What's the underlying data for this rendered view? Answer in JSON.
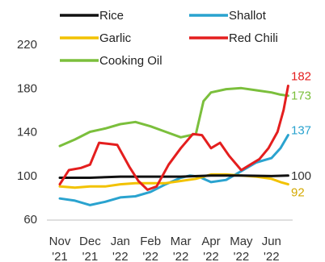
{
  "chart_data": {
    "type": "line",
    "title": "",
    "xlabel": "",
    "ylabel": "",
    "ylim": [
      60,
      220
    ],
    "yticks": [
      60,
      100,
      140,
      180,
      220
    ],
    "xlim": [
      0,
      7.6
    ],
    "xticks": [
      {
        "x": 0,
        "line1": "Nov",
        "line2": "'21"
      },
      {
        "x": 1,
        "line1": "Dec",
        "line2": "'21"
      },
      {
        "x": 2,
        "line1": "Jan",
        "line2": "'22"
      },
      {
        "x": 3,
        "line1": "Feb",
        "line2": "'22"
      },
      {
        "x": 4,
        "line1": "Mar",
        "line2": "'22"
      },
      {
        "x": 5,
        "line1": "Apr",
        "line2": "'22"
      },
      {
        "x": 6,
        "line1": "May",
        "line2": "'22"
      },
      {
        "x": 7,
        "line1": "Jun",
        "line2": "'22"
      }
    ],
    "grid": false,
    "legend_position": "top",
    "legend_order": [
      "Rice",
      "Shallot",
      "Garlic",
      "Red Chili",
      "Cooking Oil"
    ],
    "series": [
      {
        "name": "Rice",
        "color": "#111111",
        "end_label": "100",
        "end_label_color": "#333333",
        "x": [
          0,
          1,
          2,
          3,
          4,
          5,
          6,
          7,
          7.55
        ],
        "y": [
          98,
          98,
          99,
          99,
          99,
          100,
          100,
          99.5,
          100
        ]
      },
      {
        "name": "Shallot",
        "color": "#2aa3cf",
        "end_label": "137",
        "end_label_color": "#2aa3cf",
        "x": [
          0,
          0.5,
          1,
          1.5,
          2,
          2.5,
          3,
          3.5,
          4,
          4.3,
          4.6,
          5,
          5.5,
          6,
          6.5,
          7,
          7.3,
          7.55
        ],
        "y": [
          79,
          77,
          73,
          76,
          80,
          81,
          85,
          92,
          98,
          100,
          99,
          94,
          96,
          104,
          112,
          116,
          125,
          137
        ]
      },
      {
        "name": "Garlic",
        "color": "#f2c200",
        "end_label": "92",
        "end_label_color": "#d4a900",
        "x": [
          0,
          0.5,
          1,
          1.5,
          2,
          2.5,
          3,
          3.5,
          4,
          4.5,
          5,
          5.5,
          6,
          6.5,
          7,
          7.3,
          7.55
        ],
        "y": [
          90,
          89,
          90,
          90,
          92,
          93,
          93,
          93,
          95,
          97,
          101,
          101,
          100,
          99,
          97,
          94,
          92
        ]
      },
      {
        "name": "Red Chili",
        "color": "#e41e1e",
        "end_label": "182",
        "end_label_color": "#e41e1e",
        "x": [
          0,
          0.3,
          0.7,
          1,
          1.3,
          1.6,
          1.9,
          2.3,
          2.6,
          2.9,
          3.2,
          3.6,
          4,
          4.4,
          4.7,
          5,
          5.3,
          5.6,
          6,
          6.3,
          6.6,
          6.9,
          7.2,
          7.4,
          7.55
        ],
        "y": [
          92,
          105,
          107,
          110,
          130,
          129,
          128,
          108,
          95,
          87,
          90,
          110,
          125,
          138,
          137,
          125,
          130,
          118,
          105,
          110,
          115,
          125,
          140,
          160,
          182
        ]
      },
      {
        "name": "Cooking Oil",
        "color": "#7bbf3c",
        "end_label": "173",
        "end_label_color": "#7bbf3c",
        "x": [
          0,
          0.5,
          1,
          1.5,
          2,
          2.5,
          3,
          3.5,
          4,
          4.5,
          4.75,
          5,
          5.5,
          6,
          6.5,
          7,
          7.3,
          7.55
        ],
        "y": [
          127,
          133,
          140,
          143,
          147,
          149,
          145,
          140,
          135,
          138,
          168,
          176,
          179,
          180,
          178,
          176,
          174,
          173
        ]
      }
    ]
  }
}
